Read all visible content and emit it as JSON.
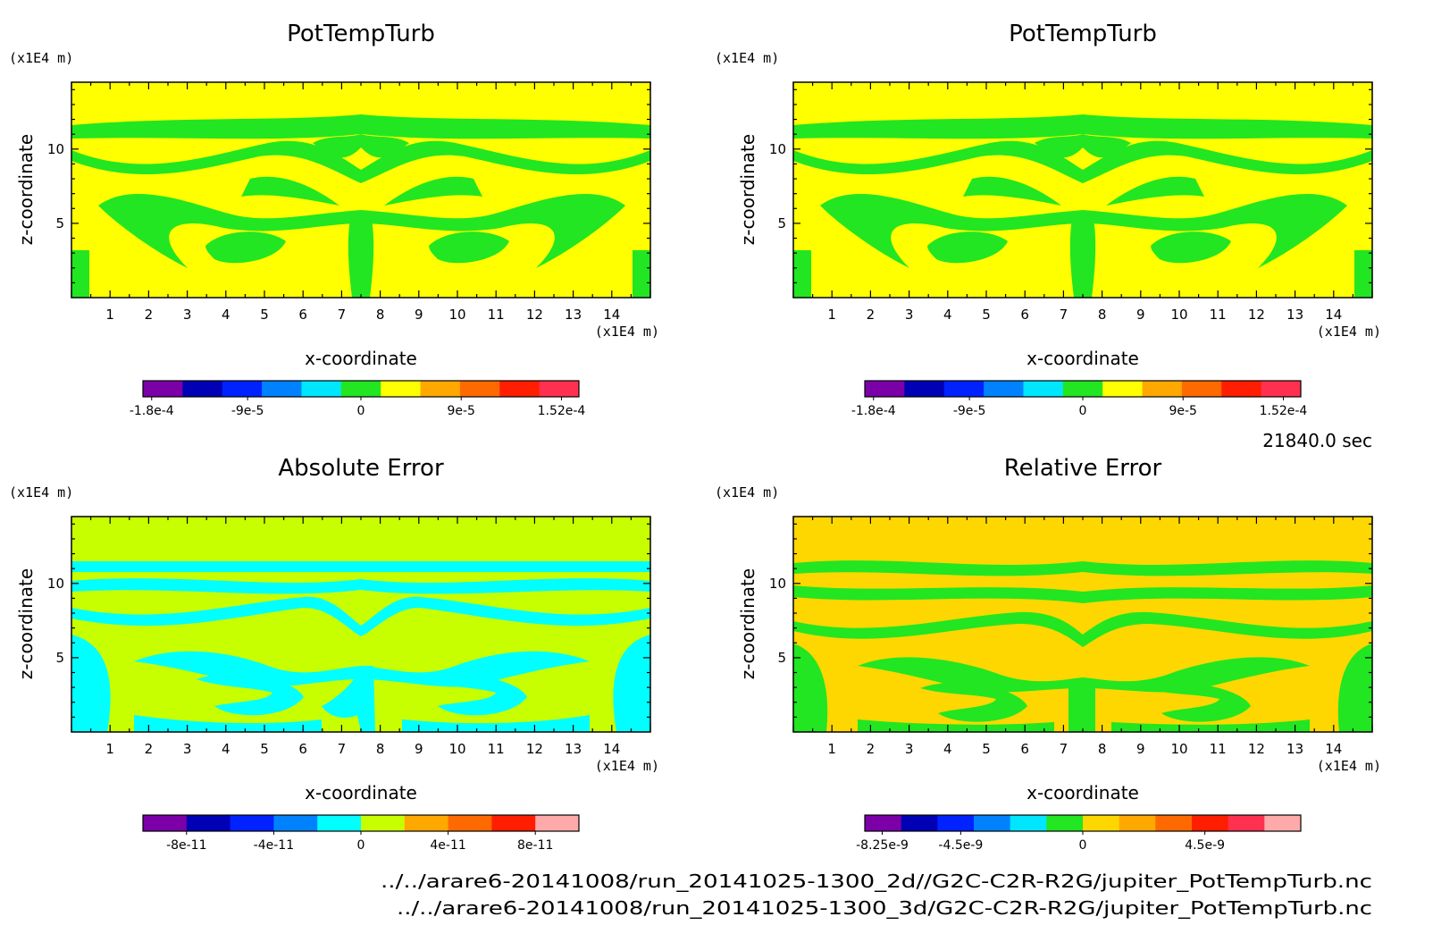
{
  "chart_data": [
    {
      "type": "heatmap",
      "title": "PotTempTurb",
      "xlabel": "x-coordinate",
      "ylabel": "z-coordinate",
      "x_unit": "(x1E4 m)",
      "y_unit": "(x1E4 m)",
      "xlim": [
        0,
        15
      ],
      "ylim": [
        0,
        14.5
      ],
      "xticks": [
        1,
        2,
        3,
        4,
        5,
        6,
        7,
        8,
        9,
        10,
        11,
        12,
        13,
        14
      ],
      "yticks": [
        5,
        10
      ],
      "background_level": "0",
      "colorbar": {
        "colors": [
          "#7b00a8",
          "#0000b4",
          "#0022ff",
          "#0082ff",
          "#00e6ff",
          "#22e622",
          "#ffff00",
          "#ffa800",
          "#ff6a00",
          "#ff1e00",
          "#ff3050"
        ],
        "tick_labels": [
          "-1.8e-4",
          "-9e-5",
          "0",
          "9e-5",
          "1.52e-4"
        ]
      }
    },
    {
      "type": "heatmap",
      "title": "PotTempTurb",
      "xlabel": "x-coordinate",
      "ylabel": "z-coordinate",
      "x_unit": "(x1E4 m)",
      "y_unit": "(x1E4 m)",
      "xlim": [
        0,
        15
      ],
      "ylim": [
        0,
        14.5
      ],
      "xticks": [
        1,
        2,
        3,
        4,
        5,
        6,
        7,
        8,
        9,
        10,
        11,
        12,
        13,
        14
      ],
      "yticks": [
        5,
        10
      ],
      "background_level": "0",
      "colorbar": {
        "colors": [
          "#7b00a8",
          "#0000b4",
          "#0022ff",
          "#0082ff",
          "#00e6ff",
          "#22e622",
          "#ffff00",
          "#ffa800",
          "#ff6a00",
          "#ff1e00",
          "#ff3050"
        ],
        "tick_labels": [
          "-1.8e-4",
          "-9e-5",
          "0",
          "9e-5",
          "1.52e-4"
        ]
      }
    },
    {
      "type": "heatmap",
      "title": "Absolute Error",
      "xlabel": "x-coordinate",
      "ylabel": "z-coordinate",
      "x_unit": "(x1E4 m)",
      "y_unit": "(x1E4 m)",
      "xlim": [
        0,
        15
      ],
      "ylim": [
        0,
        14.5
      ],
      "xticks": [
        1,
        2,
        3,
        4,
        5,
        6,
        7,
        8,
        9,
        10,
        11,
        12,
        13,
        14
      ],
      "yticks": [
        5,
        10
      ],
      "background_level": "0",
      "colorbar": {
        "colors": [
          "#7b00a8",
          "#0000b4",
          "#0022ff",
          "#0082ff",
          "#00ffff",
          "#c8ff00",
          "#ffa800",
          "#ff6a00",
          "#ff1e00",
          "#ffaaaa"
        ],
        "tick_labels": [
          "-8e-11",
          "-4e-11",
          "0",
          "4e-11",
          "8e-11"
        ]
      }
    },
    {
      "type": "heatmap",
      "title": "Relative Error",
      "xlabel": "x-coordinate",
      "ylabel": "z-coordinate",
      "x_unit": "(x1E4 m)",
      "y_unit": "(x1E4 m)",
      "xlim": [
        0,
        15
      ],
      "ylim": [
        0,
        14.5
      ],
      "xticks": [
        1,
        2,
        3,
        4,
        5,
        6,
        7,
        8,
        9,
        10,
        11,
        12,
        13,
        14
      ],
      "yticks": [
        5,
        10
      ],
      "background_level": "0",
      "colorbar": {
        "colors": [
          "#7b00a8",
          "#0000b4",
          "#0022ff",
          "#0082ff",
          "#00e6ff",
          "#22e622",
          "#ffd700",
          "#ffa800",
          "#ff6a00",
          "#ff1e00",
          "#ff3050",
          "#ffaaaa"
        ],
        "tick_labels": [
          "-8.25e-9",
          "-4.5e-9",
          "0",
          "4.5e-9"
        ]
      }
    }
  ],
  "time_label": "21840.0 sec",
  "file_paths": [
    "../../arare6-20141008/run_20141025-1300_2d//G2C-C2R-R2G/jupiter_PotTempTurb.nc",
    "../../arare6-20141008/run_20141025-1300_3d/G2C-C2R-R2G/jupiter_PotTempTurb.nc"
  ]
}
